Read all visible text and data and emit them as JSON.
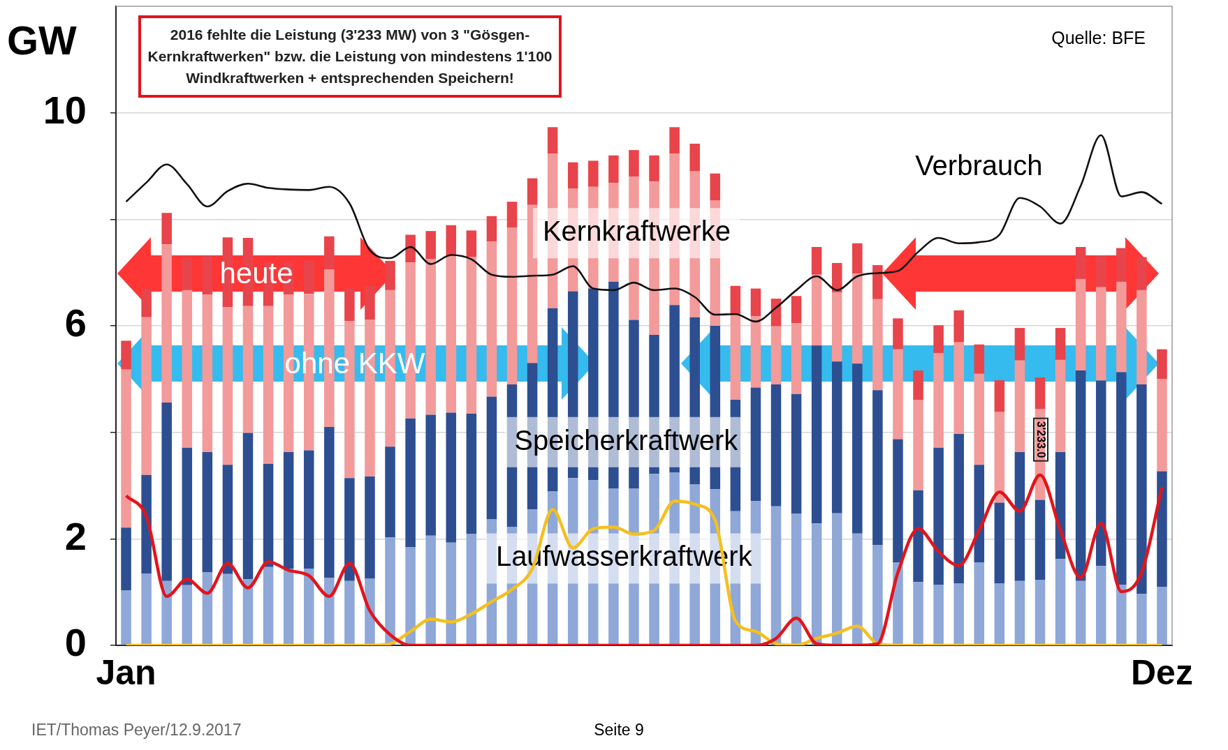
{
  "chart_data": {
    "type": "bar",
    "stacked": true,
    "ylabel": "GW",
    "ylim": [
      0,
      12
    ],
    "yticks": [
      0,
      2,
      {
        "value": 4,
        "label": null
      },
      6,
      {
        "value": 8,
        "label": null
      },
      10
    ],
    "grid": "y",
    "marker": "none",
    "categories": [
      "Jan",
      null,
      null,
      null,
      null,
      null,
      null,
      null,
      null,
      null,
      null,
      null,
      null,
      null,
      null,
      null,
      null,
      null,
      null,
      null,
      null,
      null,
      null,
      null,
      null,
      null,
      null,
      null,
      null,
      null,
      null,
      null,
      null,
      null,
      null,
      null,
      null,
      null,
      null,
      null,
      null,
      null,
      null,
      null,
      null,
      null,
      null,
      null,
      null,
      null,
      null,
      "Dez"
    ],
    "series": [
      {
        "name": "Laufwasserkraftwerk",
        "color": "#8fa8d8",
        "values": [
          1.03,
          1.35,
          1.21,
          1.13,
          1.37,
          1.34,
          1.24,
          1.47,
          1.44,
          1.44,
          1.27,
          1.21,
          1.25,
          2.03,
          1.84,
          2.06,
          1.93,
          2.09,
          2.37,
          2.22,
          2.55,
          2.89,
          3.14,
          3.1,
          2.94,
          2.94,
          3.22,
          3.25,
          3.02,
          2.93,
          2.52,
          2.71,
          2.61,
          2.47,
          2.29,
          2.48,
          2.1,
          1.88,
          1.56,
          1.19,
          1.14,
          1.16,
          1.56,
          1.16,
          1.21,
          1.23,
          1.62,
          1.21,
          1.49,
          1.14,
          0.97,
          1.1
        ]
      },
      {
        "name": "Speicherkraftwerk",
        "color": "#2d4f91",
        "values": [
          1.18,
          1.85,
          3.35,
          2.58,
          2.26,
          2.05,
          2.75,
          1.94,
          2.19,
          2.22,
          2.83,
          1.93,
          1.92,
          1.7,
          2.42,
          2.27,
          2.44,
          2.26,
          2.3,
          2.68,
          2.75,
          3.44,
          3.51,
          3.6,
          3.89,
          3.17,
          2.61,
          3.14,
          3.14,
          3.07,
          2.09,
          2.13,
          2.29,
          2.25,
          3.34,
          2.85,
          3.19,
          2.91,
          2.31,
          1.72,
          2.57,
          2.81,
          1.83,
          1.52,
          2.42,
          1.5,
          2.01,
          3.95,
          3.48,
          3.99,
          3.93,
          2.17
        ]
      },
      {
        "name": "Kernkraftwerke",
        "color": "#f39a9b",
        "values": [
          2.97,
          2.96,
          2.97,
          2.96,
          2.96,
          2.96,
          2.38,
          2.96,
          2.96,
          2.94,
          2.96,
          2.95,
          2.94,
          2.94,
          2.93,
          2.92,
          2.95,
          2.94,
          2.91,
          2.94,
          2.97,
          2.9,
          1.93,
          1.91,
          1.85,
          2.69,
          2.88,
          2.84,
          2.74,
          2.35,
          1.6,
          1.34,
          1.09,
          1.33,
          1.33,
          1.3,
          1.69,
          1.71,
          1.69,
          1.7,
          1.78,
          1.72,
          1.71,
          1.7,
          1.72,
          1.71,
          1.73,
          1.72,
          1.76,
          1.7,
          1.77,
          1.73
        ]
      },
      {
        "color": "#e8444b",
        "values": [
          0.54,
          0.54,
          0.59,
          0.6,
          0.72,
          1.31,
          1.28,
          0.82,
          0.6,
          0.62,
          0.62,
          0.62,
          0.64,
          0.55,
          0.52,
          0.53,
          0.57,
          0.5,
          0.48,
          0.49,
          0.5,
          0.5,
          0.49,
          0.49,
          0.52,
          0.5,
          0.49,
          0.5,
          0.52,
          0.51,
          0.54,
          0.52,
          0.52,
          0.51,
          0.52,
          0.55,
          0.57,
          0.64,
          0.58,
          0.55,
          0.52,
          0.6,
          0.55,
          0.6,
          0.61,
          0.59,
          0.6,
          0.6,
          0.59,
          0.63,
          0.62,
          0.56
        ]
      },
      {
        "type": "line",
        "name": "Verbrauch",
        "color": "#111111",
        "values": [
          8.33,
          8.69,
          9.03,
          8.66,
          8.24,
          8.53,
          8.67,
          8.59,
          8.56,
          8.55,
          8.61,
          8.3,
          7.42,
          7.27,
          7.48,
          7.16,
          7.33,
          7.25,
          6.96,
          6.92,
          6.94,
          6.96,
          7.12,
          6.7,
          6.67,
          6.81,
          6.67,
          6.7,
          6.54,
          6.21,
          6.22,
          6.08,
          6.34,
          6.67,
          6.93,
          6.67,
          6.93,
          6.99,
          7.03,
          7.39,
          7.65,
          7.55,
          7.57,
          7.71,
          8.4,
          8.24,
          7.92,
          8.63,
          9.58,
          8.43,
          8.51,
          8.29
        ]
      },
      {
        "type": "line",
        "color": "#e3141b",
        "values": [
          2.81,
          2.42,
          0.92,
          1.24,
          0.98,
          1.54,
          1.08,
          1.57,
          1.41,
          1.31,
          0.92,
          1.54,
          0.65,
          0.2,
          0,
          0,
          0,
          0,
          0,
          0,
          0,
          0,
          0,
          0,
          0,
          0,
          0,
          0,
          0,
          0,
          0,
          0,
          0.13,
          0.51,
          0.03,
          0,
          0,
          0.03,
          1.37,
          2.19,
          1.76,
          1.5,
          2.16,
          2.88,
          2.52,
          3.2,
          2.16,
          1.27,
          2.29,
          1.01,
          1.37,
          2.97
        ]
      },
      {
        "type": "line",
        "color": "#f5bf1f",
        "values": [
          0,
          0,
          0,
          0,
          0,
          0,
          0,
          0,
          0,
          0,
          0,
          0,
          0,
          0.03,
          0.26,
          0.49,
          0.44,
          0.59,
          0.82,
          1.05,
          1.44,
          2.55,
          1.83,
          2.19,
          2.22,
          2.09,
          2.16,
          2.71,
          2.65,
          2.35,
          0.46,
          0.26,
          0.03,
          0,
          0.13,
          0.23,
          0.36,
          0.03,
          0,
          0,
          0,
          0,
          0,
          0,
          0,
          0,
          0,
          0,
          0,
          0,
          0,
          0
        ]
      }
    ],
    "annotations": [
      "2016 fehlte die Leistung (3'233 MW) von 3 \"Gösgen-Kernkraftwerken\" bzw. die Leistung von mindestens 1'100 Windkraftwerken + entsprechenden Speichern!",
      "Quelle: BFE",
      "heute",
      "ohne KKW",
      "3'233.0",
      "IET/Thomas Peyer/12.9.2017",
      "Seite 9"
    ]
  }
}
